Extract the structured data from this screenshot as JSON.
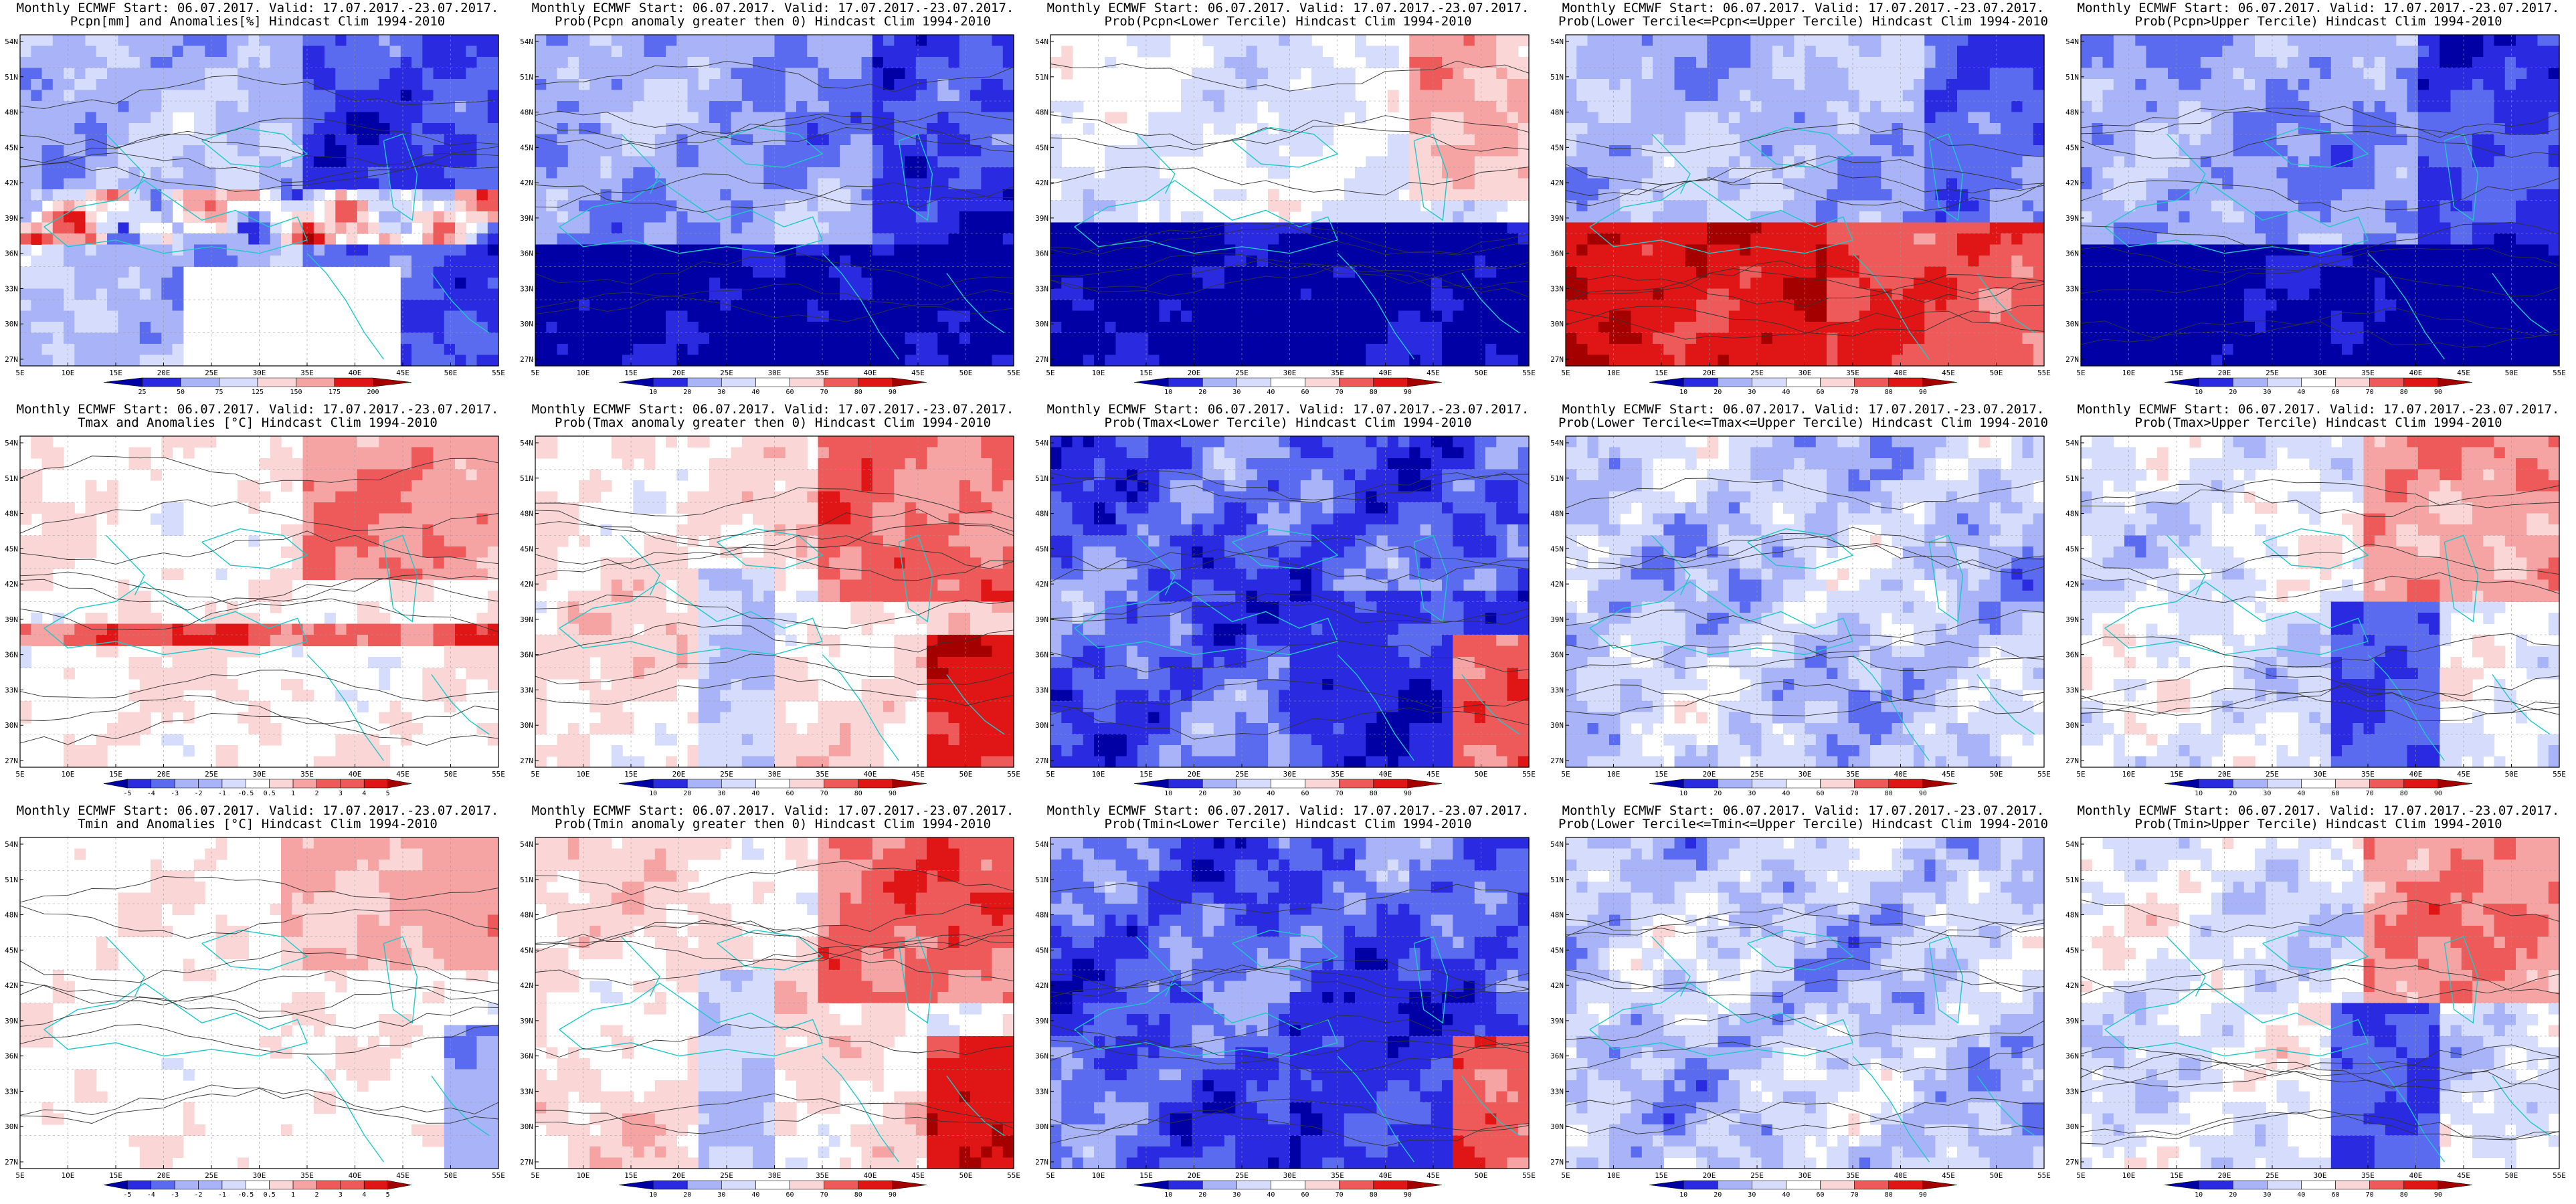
{
  "colors": {
    "blue_dark": "#0000a5",
    "blue": "#2a2ae0",
    "blue_mid": "#5a6bef",
    "blue_light": "#a8b4f7",
    "blue_pale": "#d6dcfb",
    "white": "#ffffff",
    "red_pale": "#fbd6d6",
    "red_light": "#f6a3a3",
    "red_mid": "#ee5a5a",
    "red": "#e01515",
    "red_dark": "#a50000",
    "coast": "#1fc8c8",
    "contour": "#333333"
  },
  "axes": {
    "y_labels": [
      "54N",
      "51N",
      "48N",
      "45N",
      "42N",
      "39N",
      "36N",
      "33N",
      "30N",
      "27N"
    ],
    "x_labels": [
      "5E",
      "10E",
      "15E",
      "20E",
      "25E",
      "30E",
      "35E",
      "40E",
      "45E",
      "50E",
      "55E"
    ]
  },
  "colorbars": {
    "pcpn": [
      "25",
      "50",
      "75",
      "125",
      "150",
      "175",
      "200"
    ],
    "prob": [
      "10",
      "20",
      "30",
      "40",
      "60",
      "70",
      "80",
      "90"
    ],
    "temp": [
      "-5",
      "-4",
      "-3",
      "-2",
      "-1",
      "-0.5",
      "0.5",
      "1",
      "2",
      "3",
      "4",
      "5"
    ]
  },
  "panels": [
    {
      "id": "p1",
      "line1": "Monthly ECMWF Start: 06.07.2017. Valid: 17.07.2017.-23.07.2017.",
      "line2": "Pcpn[mm] and Anomalies[%] Hindcast Clim 1994-2010",
      "scheme": "pcpn_anom",
      "cb": "pcpn"
    },
    {
      "id": "p2",
      "line1": "Monthly ECMWF Start: 06.07.2017. Valid: 17.07.2017.-23.07.2017.",
      "line2": "Prob(Pcpn anomaly greater then 0) Hindcast Clim 1994-2010",
      "scheme": "pcpn_blue",
      "cb": "prob"
    },
    {
      "id": "p3",
      "line1": "Monthly ECMWF Start: 06.07.2017. Valid: 17.07.2017.-23.07.2017.",
      "line2": "Prob(Pcpn<Lower Tercile) Hindcast Clim 1994-2010",
      "scheme": "pcpn_lower",
      "cb": "prob"
    },
    {
      "id": "p4",
      "line1": "Monthly ECMWF Start: 06.07.2017. Valid: 17.07.2017.-23.07.2017.",
      "line2": "Prob(Lower Tercile<=Pcpn<=Upper Tercile) Hindcast Clim 1994-2010",
      "scheme": "pcpn_middle",
      "cb": "prob"
    },
    {
      "id": "p5",
      "line1": "Monthly ECMWF Start: 06.07.2017. Valid: 17.07.2017.-23.07.2017.",
      "line2": "Prob(Pcpn>Upper Tercile) Hindcast Clim 1994-2010",
      "scheme": "pcpn_blue",
      "cb": "prob"
    },
    {
      "id": "p6",
      "line1": "Monthly ECMWF Start: 06.07.2017. Valid: 17.07.2017.-23.07.2017.",
      "line2": "Tmax and Anomalies [°C] Hindcast Clim 1994-2010",
      "scheme": "temp_anom",
      "cb": "temp"
    },
    {
      "id": "p7",
      "line1": "Monthly ECMWF Start: 06.07.2017. Valid: 17.07.2017.-23.07.2017.",
      "line2": "Prob(Tmax anomaly greater then 0) Hindcast Clim 1994-2010",
      "scheme": "warm",
      "cb": "prob"
    },
    {
      "id": "p8",
      "line1": "Monthly ECMWF Start: 06.07.2017. Valid: 17.07.2017.-23.07.2017.",
      "line2": "Prob(Tmax<Lower Tercile) Hindcast Clim 1994-2010",
      "scheme": "cold",
      "cb": "prob"
    },
    {
      "id": "p9",
      "line1": "Monthly ECMWF Start: 06.07.2017. Valid: 17.07.2017.-23.07.2017.",
      "line2": "Prob(Lower Tercile<=Tmax<=Upper Tercile) Hindcast Clim 1994-2010",
      "scheme": "mixed",
      "cb": "prob"
    },
    {
      "id": "p10",
      "line1": "Monthly ECMWF Start: 06.07.2017. Valid: 17.07.2017.-23.07.2017.",
      "line2": "Prob(Tmax>Upper Tercile) Hindcast Clim 1994-2010",
      "scheme": "warm_upper",
      "cb": "prob"
    },
    {
      "id": "p11",
      "line1": "Monthly ECMWF Start: 06.07.2017. Valid: 17.07.2017.-23.07.2017.",
      "line2": "Tmin and Anomalies [°C] Hindcast Clim 1994-2010",
      "scheme": "temp_anom_min",
      "cb": "temp"
    },
    {
      "id": "p12",
      "line1": "Monthly ECMWF Start: 06.07.2017. Valid: 17.07.2017.-23.07.2017.",
      "line2": "Prob(Tmin anomaly greater then 0) Hindcast Clim 1994-2010",
      "scheme": "warm",
      "cb": "prob"
    },
    {
      "id": "p13",
      "line1": "Monthly ECMWF Start: 06.07.2017. Valid: 17.07.2017.-23.07.2017.",
      "line2": "Prob(Tmin<Lower Tercile) Hindcast Clim 1994-2010",
      "scheme": "cold",
      "cb": "prob"
    },
    {
      "id": "p14",
      "line1": "Monthly ECMWF Start: 06.07.2017. Valid: 17.07.2017.-23.07.2017.",
      "line2": "Prob(Lower Tercile<=Tmin<=Upper Tercile) Hindcast Clim 1994-2010",
      "scheme": "mixed",
      "cb": "prob"
    },
    {
      "id": "p15",
      "line1": "Monthly ECMWF Start: 06.07.2017. Valid: 17.07.2017.-23.07.2017.",
      "line2": "Prob(Tmin>Upper Tercile) Hindcast Clim 1994-2010",
      "scheme": "warm_upper",
      "cb": "prob"
    }
  ]
}
